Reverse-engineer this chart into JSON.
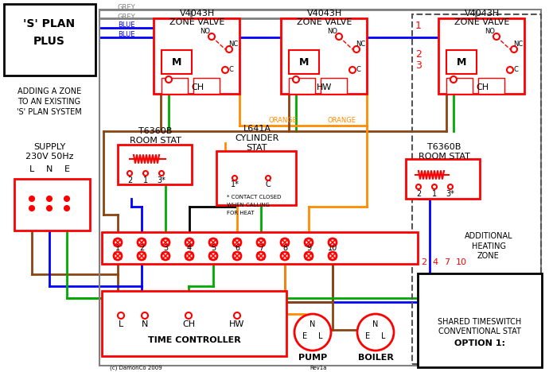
{
  "bg_color": "#ffffff",
  "red": "#ff0000",
  "blue": "#0000ff",
  "green": "#00aa00",
  "orange": "#ff8c00",
  "brown": "#8B4513",
  "grey": "#808080",
  "black": "#000000",
  "dashed_border": "#555555",
  "title_line1": "'S' PLAN",
  "title_line2": "PLUS",
  "subtitle_lines": [
    "ADDING A ZONE",
    "TO AN EXISTING",
    "'S' PLAN SYSTEM"
  ],
  "supply_line1": "SUPPLY",
  "supply_line2": "230V 50Hz",
  "zone1_label1": "V4043H",
  "zone1_label2": "ZONE VALVE",
  "zone1_sub": "CH",
  "zone2_label1": "V4043H",
  "zone2_label2": "ZONE VALVE",
  "zone2_sub": "HW",
  "zone3_label1": "V4043H",
  "zone3_label2": "ZONE VALVE",
  "zone3_sub": "CH",
  "roomstat1_line1": "T6360B",
  "roomstat1_line2": "ROOM STAT",
  "cylstat_line1": "L641A",
  "cylstat_line2": "CYLINDER",
  "cylstat_line3": "STAT",
  "cylstat_note1": "* CONTACT CLOSED",
  "cylstat_note2": "WHEN CALLING",
  "cylstat_note3": "FOR HEAT",
  "roomstat2_line1": "T6360B",
  "roomstat2_line2": "ROOM STAT",
  "addzone_line1": "ADDITIONAL",
  "addzone_line2": "HEATING",
  "addzone_line3": "ZONE",
  "option_line1": "OPTION 1:",
  "option_line2": "CONVENTIONAL STAT",
  "option_line3": "SHARED TIMESWITCH",
  "tc_label": "TIME CONTROLLER",
  "pump_label": "PUMP",
  "boiler_label": "BOILER",
  "copyright": "(c) DamonCo 2009",
  "revision": "Rev1a",
  "orange_label": "ORANGE",
  "grey_label1": "GREY",
  "grey_label2": "GREY",
  "blue_label1": "BLUE",
  "blue_label2": "BLUE"
}
